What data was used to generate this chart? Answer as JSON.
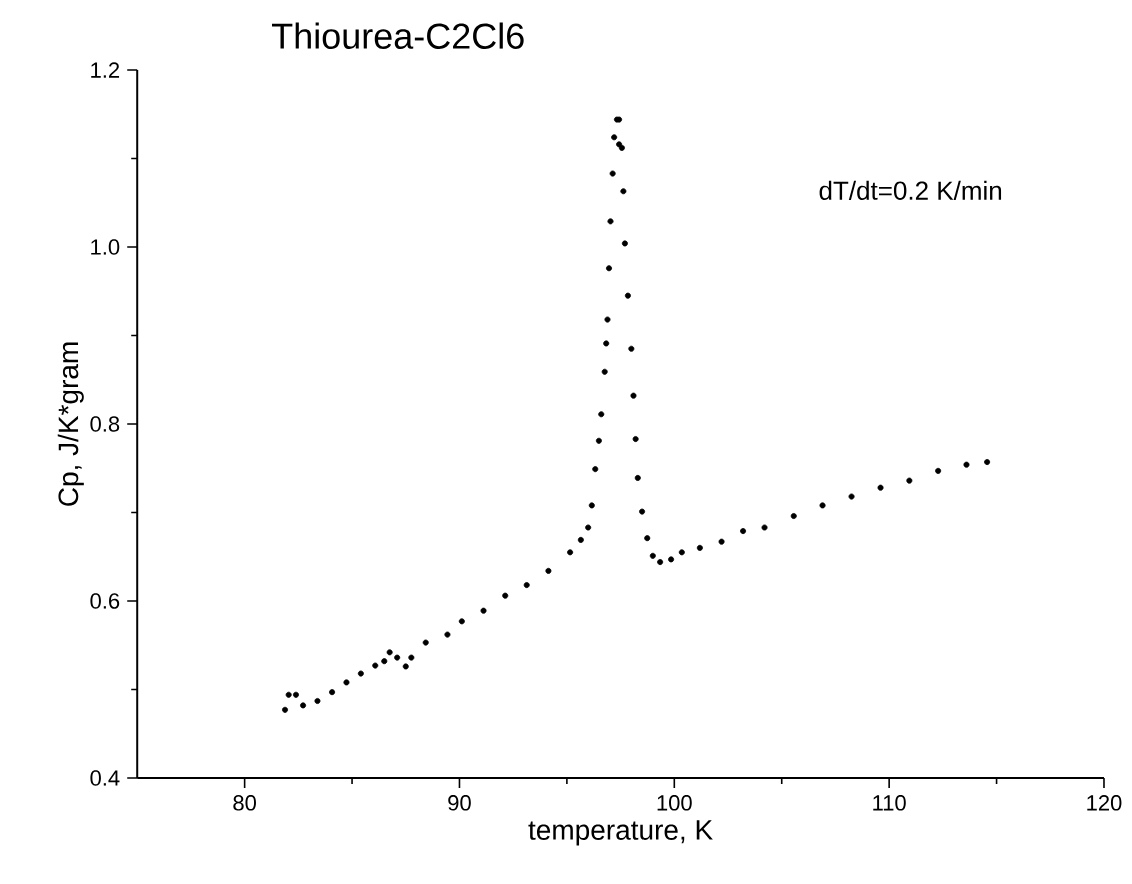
{
  "chart_data": {
    "type": "scatter",
    "title": "Thiourea-C2Cl6",
    "xlabel": "temperature, K",
    "ylabel": "Cp, J/K*gram",
    "annotations": [
      "dT/dt=0.2 K/min"
    ],
    "grid": false,
    "x": [
      81.88,
      82.05,
      82.39,
      82.72,
      83.39,
      84.07,
      84.74,
      85.41,
      86.08,
      86.5,
      86.75,
      87.1,
      87.5,
      87.76,
      88.43,
      89.44,
      90.11,
      91.12,
      92.13,
      93.13,
      94.14,
      95.15,
      95.65,
      95.99,
      96.16,
      96.32,
      96.49,
      96.6,
      96.76,
      96.83,
      96.89,
      96.96,
      97.03,
      97.13,
      97.2,
      97.33,
      97.43,
      97.43,
      97.56,
      97.63,
      97.7,
      97.84,
      98.0,
      98.1,
      98.2,
      98.3,
      98.5,
      98.74,
      99.0,
      99.34,
      99.85,
      100.35,
      101.19,
      102.2,
      103.2,
      104.2,
      105.56,
      106.9,
      108.25,
      109.6,
      110.94,
      112.28,
      113.6,
      114.56
    ],
    "series": [
      {
        "color": "#000000",
        "values": [
          0.477,
          0.494,
          0.494,
          0.482,
          0.487,
          0.497,
          0.508,
          0.518,
          0.527,
          0.532,
          0.542,
          0.536,
          0.526,
          0.536,
          0.553,
          0.562,
          0.577,
          0.589,
          0.606,
          0.618,
          0.634,
          0.655,
          0.669,
          0.683,
          0.708,
          0.749,
          0.781,
          0.811,
          0.859,
          0.891,
          0.918,
          0.976,
          1.029,
          1.083,
          1.124,
          1.144,
          1.144,
          1.116,
          1.112,
          1.063,
          1.004,
          0.945,
          0.885,
          0.832,
          0.783,
          0.739,
          0.701,
          0.671,
          0.651,
          0.644,
          0.647,
          0.655,
          0.66,
          0.667,
          0.679,
          0.683,
          0.696,
          0.708,
          0.718,
          0.728,
          0.736,
          0.747,
          0.754,
          0.757
        ]
      }
    ],
    "xlim": [
      75,
      120
    ],
    "ylim": [
      0.4,
      1.2
    ],
    "xticks": [
      80,
      90,
      100,
      110,
      120
    ],
    "yticks": [
      {
        "value": 0.4,
        "label": "0.4"
      },
      {
        "value": 0.6,
        "label": "0.6"
      },
      {
        "value": 0.8,
        "label": "0.8"
      },
      {
        "value": 1.0,
        "label": "1.0"
      },
      {
        "value": 1.2,
        "label": "1.2"
      }
    ]
  }
}
